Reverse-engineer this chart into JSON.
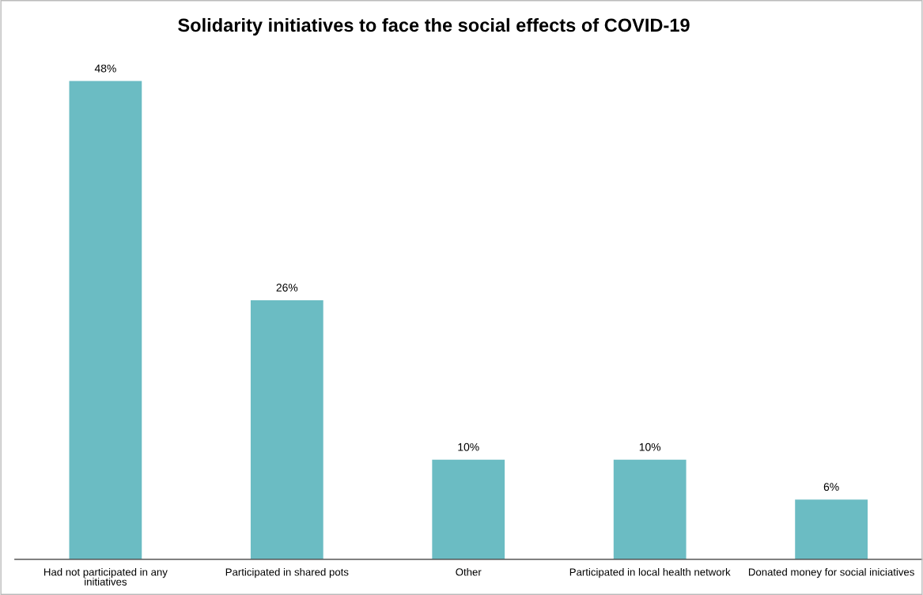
{
  "chart_data": {
    "type": "bar",
    "title": "Solidarity initiatives to face the social effects of COVID-19",
    "categories": [
      "Had not participated in any\ninitiatives",
      "Participated in shared pots",
      "Other",
      "Participated in local health network",
      "Donated money for social iniciatives"
    ],
    "values": [
      48,
      26,
      10,
      10,
      6
    ],
    "color": "#6bbcc3",
    "value_labels": [
      "48%",
      "26%",
      "10%",
      "10%",
      "6%"
    ],
    "grid": false,
    "legend": false
  }
}
